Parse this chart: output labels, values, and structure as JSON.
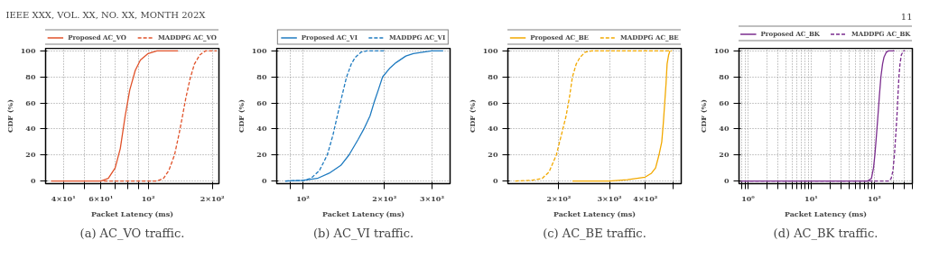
{
  "chart_data": [
    {
      "type": "line",
      "xlabel": "Packet Latency (ms)",
      "ylabel": "CDF (%)",
      "log": "x",
      "grid": true,
      "legend": "top",
      "marker": "none",
      "annotations": [
        "IEEE XXX, VOL. XX, NO. XX, MONTH 202X",
        "(a) AC_VO traffic."
      ],
      "xlim": [
        33,
        215
      ],
      "xticks": [
        {
          "value": 40,
          "label": "4×10¹"
        },
        {
          "value": 50,
          "label": null
        },
        {
          "value": 60,
          "label": "6×10¹"
        },
        {
          "value": 70,
          "label": null
        },
        {
          "value": 80,
          "label": null
        },
        {
          "value": 90,
          "label": null
        },
        {
          "value": 100,
          "label": "10²"
        },
        {
          "value": 200,
          "label": "2×10²"
        }
      ],
      "ylim": [
        -2,
        102
      ],
      "yticks": [
        0,
        20,
        40,
        60,
        80,
        100
      ],
      "series": [
        {
          "name": "Proposed AC_VO",
          "color": "#e0522a",
          "line_style": "solid",
          "x": [
            35,
            60,
            65,
            70,
            74,
            78,
            82,
            87,
            92,
            100,
            110,
            138
          ],
          "values": [
            0,
            0,
            2,
            10,
            25,
            50,
            70,
            85,
            93,
            98,
            100,
            100
          ]
        },
        {
          "name": "MADDPG AC_VO",
          "color": "#e0522a",
          "line_style": "dashed",
          "x": [
            62,
            110,
            118,
            125,
            133,
            140,
            145,
            150,
            157,
            165,
            175,
            186,
            210
          ],
          "values": [
            0,
            0,
            2,
            8,
            20,
            37,
            50,
            63,
            78,
            90,
            97,
            100,
            100
          ]
        }
      ]
    },
    {
      "type": "line",
      "xlabel": "Packet Latency (ms)",
      "ylabel": "CDF (%)",
      "log": "x",
      "grid": true,
      "legend": "top",
      "marker": "none",
      "annotations": [
        "(b) AC_VI traffic."
      ],
      "xlim": [
        80,
        350
      ],
      "xticks": [
        {
          "value": 90,
          "label": null
        },
        {
          "value": 100,
          "label": "10²"
        },
        {
          "value": 200,
          "label": "2×10²"
        },
        {
          "value": 300,
          "label": "3×10²"
        }
      ],
      "ylim": [
        -2,
        102
      ],
      "yticks": [
        0,
        20,
        40,
        60,
        80,
        100
      ],
      "series": [
        {
          "name": "Proposed AC_VI",
          "color": "#1f7bc0",
          "line_style": "solid",
          "x": [
            86,
            100,
            113,
            125,
            138,
            148,
            160,
            168,
            177,
            183,
            190,
            197,
            210,
            221,
            240,
            256,
            299,
            330
          ],
          "values": [
            0,
            0.5,
            2,
            6,
            12,
            20,
            32,
            40,
            50,
            60,
            70,
            80,
            87,
            91,
            96,
            98,
            100,
            100
          ]
        },
        {
          "name": "MADDPG AC_VI",
          "color": "#1f7bc0",
          "line_style": "dashed",
          "x": [
            86,
            100,
            107,
            115,
            123,
            129,
            134,
            140,
            145,
            151,
            156,
            164,
            172,
            202
          ],
          "values": [
            0,
            0.5,
            2,
            8,
            20,
            35,
            50,
            67,
            80,
            90,
            95,
            99,
            100,
            100
          ]
        }
      ]
    },
    {
      "type": "line",
      "xlabel": "Packet Latency (ms)",
      "ylabel": "CDF (%)",
      "log": "x",
      "grid": true,
      "legend": "top",
      "marker": "none",
      "annotations": [
        "(c) AC_BE traffic."
      ],
      "xlim": [
        133,
        533
      ],
      "xticks": [
        {
          "value": 200,
          "label": "2×10²"
        },
        {
          "value": 300,
          "label": "3×10²"
        },
        {
          "value": 400,
          "label": "4×10²"
        },
        {
          "value": 500,
          "label": null
        }
      ],
      "ylim": [
        -2,
        102
      ],
      "yticks": [
        0,
        20,
        40,
        60,
        80,
        100
      ],
      "series": [
        {
          "name": "Proposed AC_BE",
          "color": "#f2a900",
          "line_style": "solid",
          "x": [
            223,
            300,
            346,
            399,
            420,
            434,
            446,
            456,
            462,
            467,
            472,
            476,
            482,
            487
          ],
          "values": [
            0,
            0,
            1,
            3,
            6,
            10,
            20,
            30,
            45,
            60,
            75,
            90,
            97,
            100
          ]
        },
        {
          "name": "MADDPG AC_BE",
          "color": "#f2a900",
          "line_style": "dashed",
          "x": [
            141,
            160,
            175,
            185,
            196,
            205,
            212,
            218,
            223,
            230,
            237,
            247,
            260,
            495
          ],
          "values": [
            0,
            0.5,
            2,
            7,
            20,
            37,
            50,
            65,
            80,
            90,
            95,
            99,
            100,
            100
          ]
        }
      ]
    },
    {
      "type": "line",
      "xlabel": "Packet Latency (ms)",
      "ylabel": "CDF (%)",
      "log": "x",
      "grid": true,
      "legend": "top",
      "marker": "none",
      "annotations": [
        "11",
        "(d) AC_BK traffic."
      ],
      "xlim": [
        0.72,
        400
      ],
      "xticks": [
        {
          "value": 0.8,
          "label": null
        },
        {
          "value": 0.9,
          "label": null
        },
        {
          "value": 1,
          "label": "10⁰"
        },
        {
          "value": 2,
          "label": null
        },
        {
          "value": 3,
          "label": null
        },
        {
          "value": 4,
          "label": null
        },
        {
          "value": 5,
          "label": null
        },
        {
          "value": 6,
          "label": null
        },
        {
          "value": 7,
          "label": null
        },
        {
          "value": 8,
          "label": null
        },
        {
          "value": 9,
          "label": null
        },
        {
          "value": 10,
          "label": "10¹"
        },
        {
          "value": 20,
          "label": null
        },
        {
          "value": 30,
          "label": null
        },
        {
          "value": 40,
          "label": null
        },
        {
          "value": 50,
          "label": null
        },
        {
          "value": 60,
          "label": null
        },
        {
          "value": 70,
          "label": null
        },
        {
          "value": 80,
          "label": null
        },
        {
          "value": 90,
          "label": null
        },
        {
          "value": 100,
          "label": "10²"
        },
        {
          "value": 200,
          "label": null
        },
        {
          "value": 300,
          "label": null
        },
        {
          "value": 400,
          "label": null
        }
      ],
      "ylim": [
        -2,
        102
      ],
      "yticks": [
        0,
        20,
        40,
        60,
        80,
        100
      ],
      "series": [
        {
          "name": "Proposed AC_BK",
          "color": "#7b2d8e",
          "line_style": "solid",
          "x": [
            0.72,
            78,
            90,
            97,
            102,
            108,
            114,
            120,
            127,
            135,
            142,
            155,
            167,
            208
          ],
          "values": [
            0,
            0,
            2,
            10,
            20,
            35,
            50,
            65,
            80,
            90,
            95,
            99,
            100,
            100
          ]
        },
        {
          "name": "MADDPG AC_BK",
          "color": "#7b2d8e",
          "line_style": "dashed",
          "x": [
            0.72,
            170,
            185,
            197,
            208,
            218,
            228,
            236,
            245,
            255,
            268,
            289,
            306
          ],
          "values": [
            0,
            0,
            2,
            8,
            20,
            35,
            50,
            65,
            80,
            90,
            97,
            100,
            100
          ]
        }
      ]
    }
  ]
}
